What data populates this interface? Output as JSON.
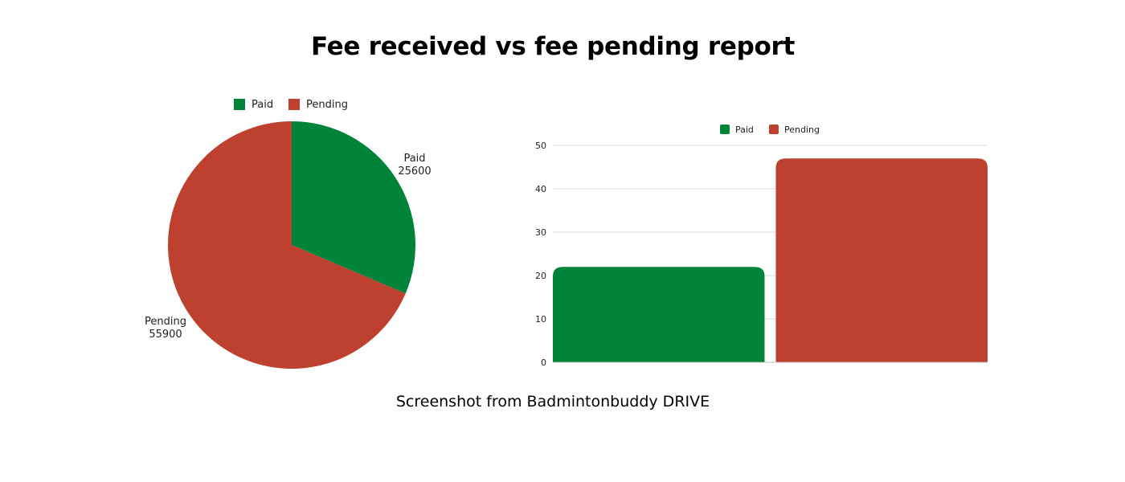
{
  "page": {
    "title": "Fee received vs fee pending report",
    "caption": "Screenshot from Badmintonbuddy DRIVE"
  },
  "colors": {
    "paid": "#00843a",
    "pending": "#be4130",
    "grid": "#d9d9d9",
    "text": "#222222"
  },
  "chart_data": [
    {
      "type": "pie",
      "title": "",
      "legend": {
        "position": "top"
      },
      "series": [
        {
          "name": "Paid",
          "value": 25600,
          "label": "25600",
          "color": "#00843a"
        },
        {
          "name": "Pending",
          "value": 55900,
          "label": "55900",
          "color": "#be4130"
        }
      ]
    },
    {
      "type": "bar",
      "title": "",
      "legend": {
        "position": "top"
      },
      "categories": [
        "Paid",
        "Pending"
      ],
      "values": [
        22,
        47
      ],
      "colors": [
        "#00843a",
        "#be4130"
      ],
      "ylim": [
        0,
        50
      ],
      "yticks": [
        0,
        10,
        20,
        30,
        40,
        50
      ],
      "grid": true
    }
  ]
}
